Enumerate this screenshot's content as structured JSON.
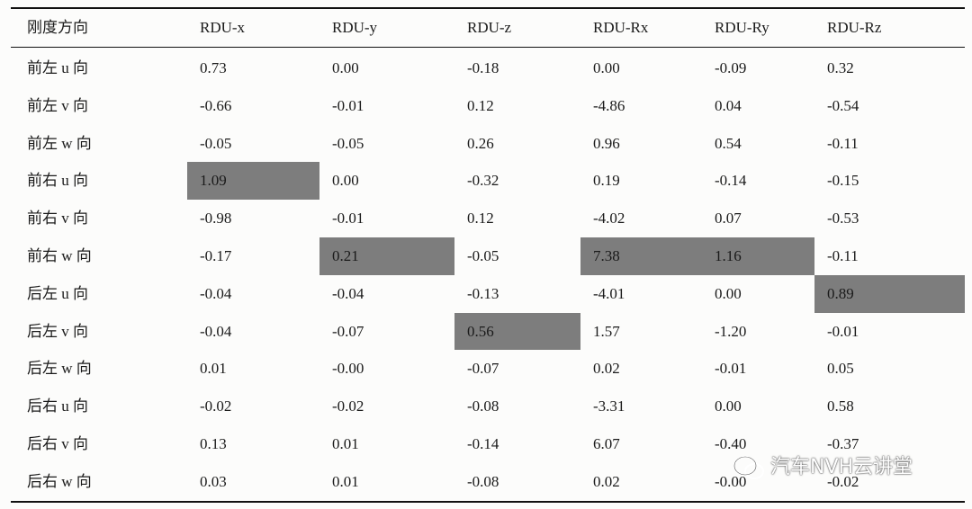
{
  "table": {
    "header": [
      "刚度方向",
      "RDU-x",
      "RDU-y",
      "RDU-z",
      "RDU-Rx",
      "RDU-Ry",
      "RDU-Rz"
    ],
    "rows": [
      [
        "前左 u 向",
        "0.73",
        "0.00",
        "-0.18",
        "0.00",
        "-0.09",
        "0.32"
      ],
      [
        "前左 v 向",
        "-0.66",
        "-0.01",
        "0.12",
        "-4.86",
        "0.04",
        "-0.54"
      ],
      [
        "前左 w 向",
        "-0.05",
        "-0.05",
        "0.26",
        "0.96",
        "0.54",
        "-0.11"
      ],
      [
        "前右 u 向",
        "1.09",
        "0.00",
        "-0.32",
        "0.19",
        "-0.14",
        "-0.15"
      ],
      [
        "前右 v 向",
        "-0.98",
        "-0.01",
        "0.12",
        "-4.02",
        "0.07",
        "-0.53"
      ],
      [
        "前右 w 向",
        "-0.17",
        "0.21",
        "-0.05",
        "7.38",
        "1.16",
        "-0.11"
      ],
      [
        "后左 u 向",
        "-0.04",
        "-0.04",
        "-0.13",
        "-4.01",
        "0.00",
        "0.89"
      ],
      [
        "后左 v 向",
        "-0.04",
        "-0.07",
        "0.56",
        "1.57",
        "-1.20",
        "-0.01"
      ],
      [
        "后左 w 向",
        "0.01",
        "-0.00",
        "-0.07",
        "0.02",
        "-0.01",
        "0.05"
      ],
      [
        "后右 u 向",
        "-0.02",
        "-0.02",
        "-0.08",
        "-3.31",
        "0.00",
        "0.58"
      ],
      [
        "后右 v 向",
        "0.13",
        "0.01",
        "-0.14",
        "6.07",
        "-0.40",
        "-0.37"
      ],
      [
        "后右 w 向",
        "0.03",
        "0.01",
        "-0.08",
        "0.02",
        "-0.00",
        "-0.02"
      ]
    ],
    "highlighted_cells": [
      [
        3,
        1
      ],
      [
        5,
        2
      ],
      [
        5,
        4
      ],
      [
        5,
        5
      ],
      [
        6,
        6
      ],
      [
        7,
        3
      ]
    ]
  },
  "watermark": "汽车NVH云讲堂"
}
